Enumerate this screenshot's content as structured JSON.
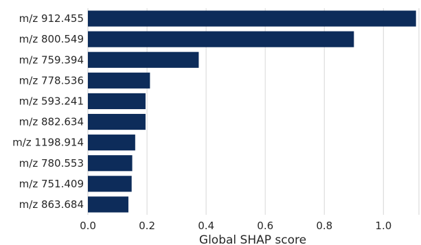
{
  "chart_data": {
    "type": "bar",
    "orientation": "horizontal",
    "title": "",
    "xlabel": "Global SHAP score",
    "ylabel": "",
    "categories": [
      "m/z 912.455",
      "m/z 800.549",
      "m/z 759.394",
      "m/z 778.536",
      "m/z 593.241",
      "m/z 882.634",
      "m/z 1198.914",
      "m/z 780.553",
      "m/z 751.409",
      "m/z 863.684"
    ],
    "values": [
      1.11,
      0.9,
      0.375,
      0.21,
      0.195,
      0.195,
      0.16,
      0.15,
      0.148,
      0.137
    ],
    "xlim": [
      0.0,
      1.12
    ],
    "xticks": [
      "0.0",
      "0.2",
      "0.4",
      "0.6",
      "0.8",
      "1.0"
    ],
    "xtick_values": [
      0.0,
      0.2,
      0.4,
      0.6,
      0.8,
      1.0
    ],
    "grid": "vertical",
    "bar_color": "#0d2c5a",
    "grid_color": "#dddddd",
    "legend": "none"
  }
}
